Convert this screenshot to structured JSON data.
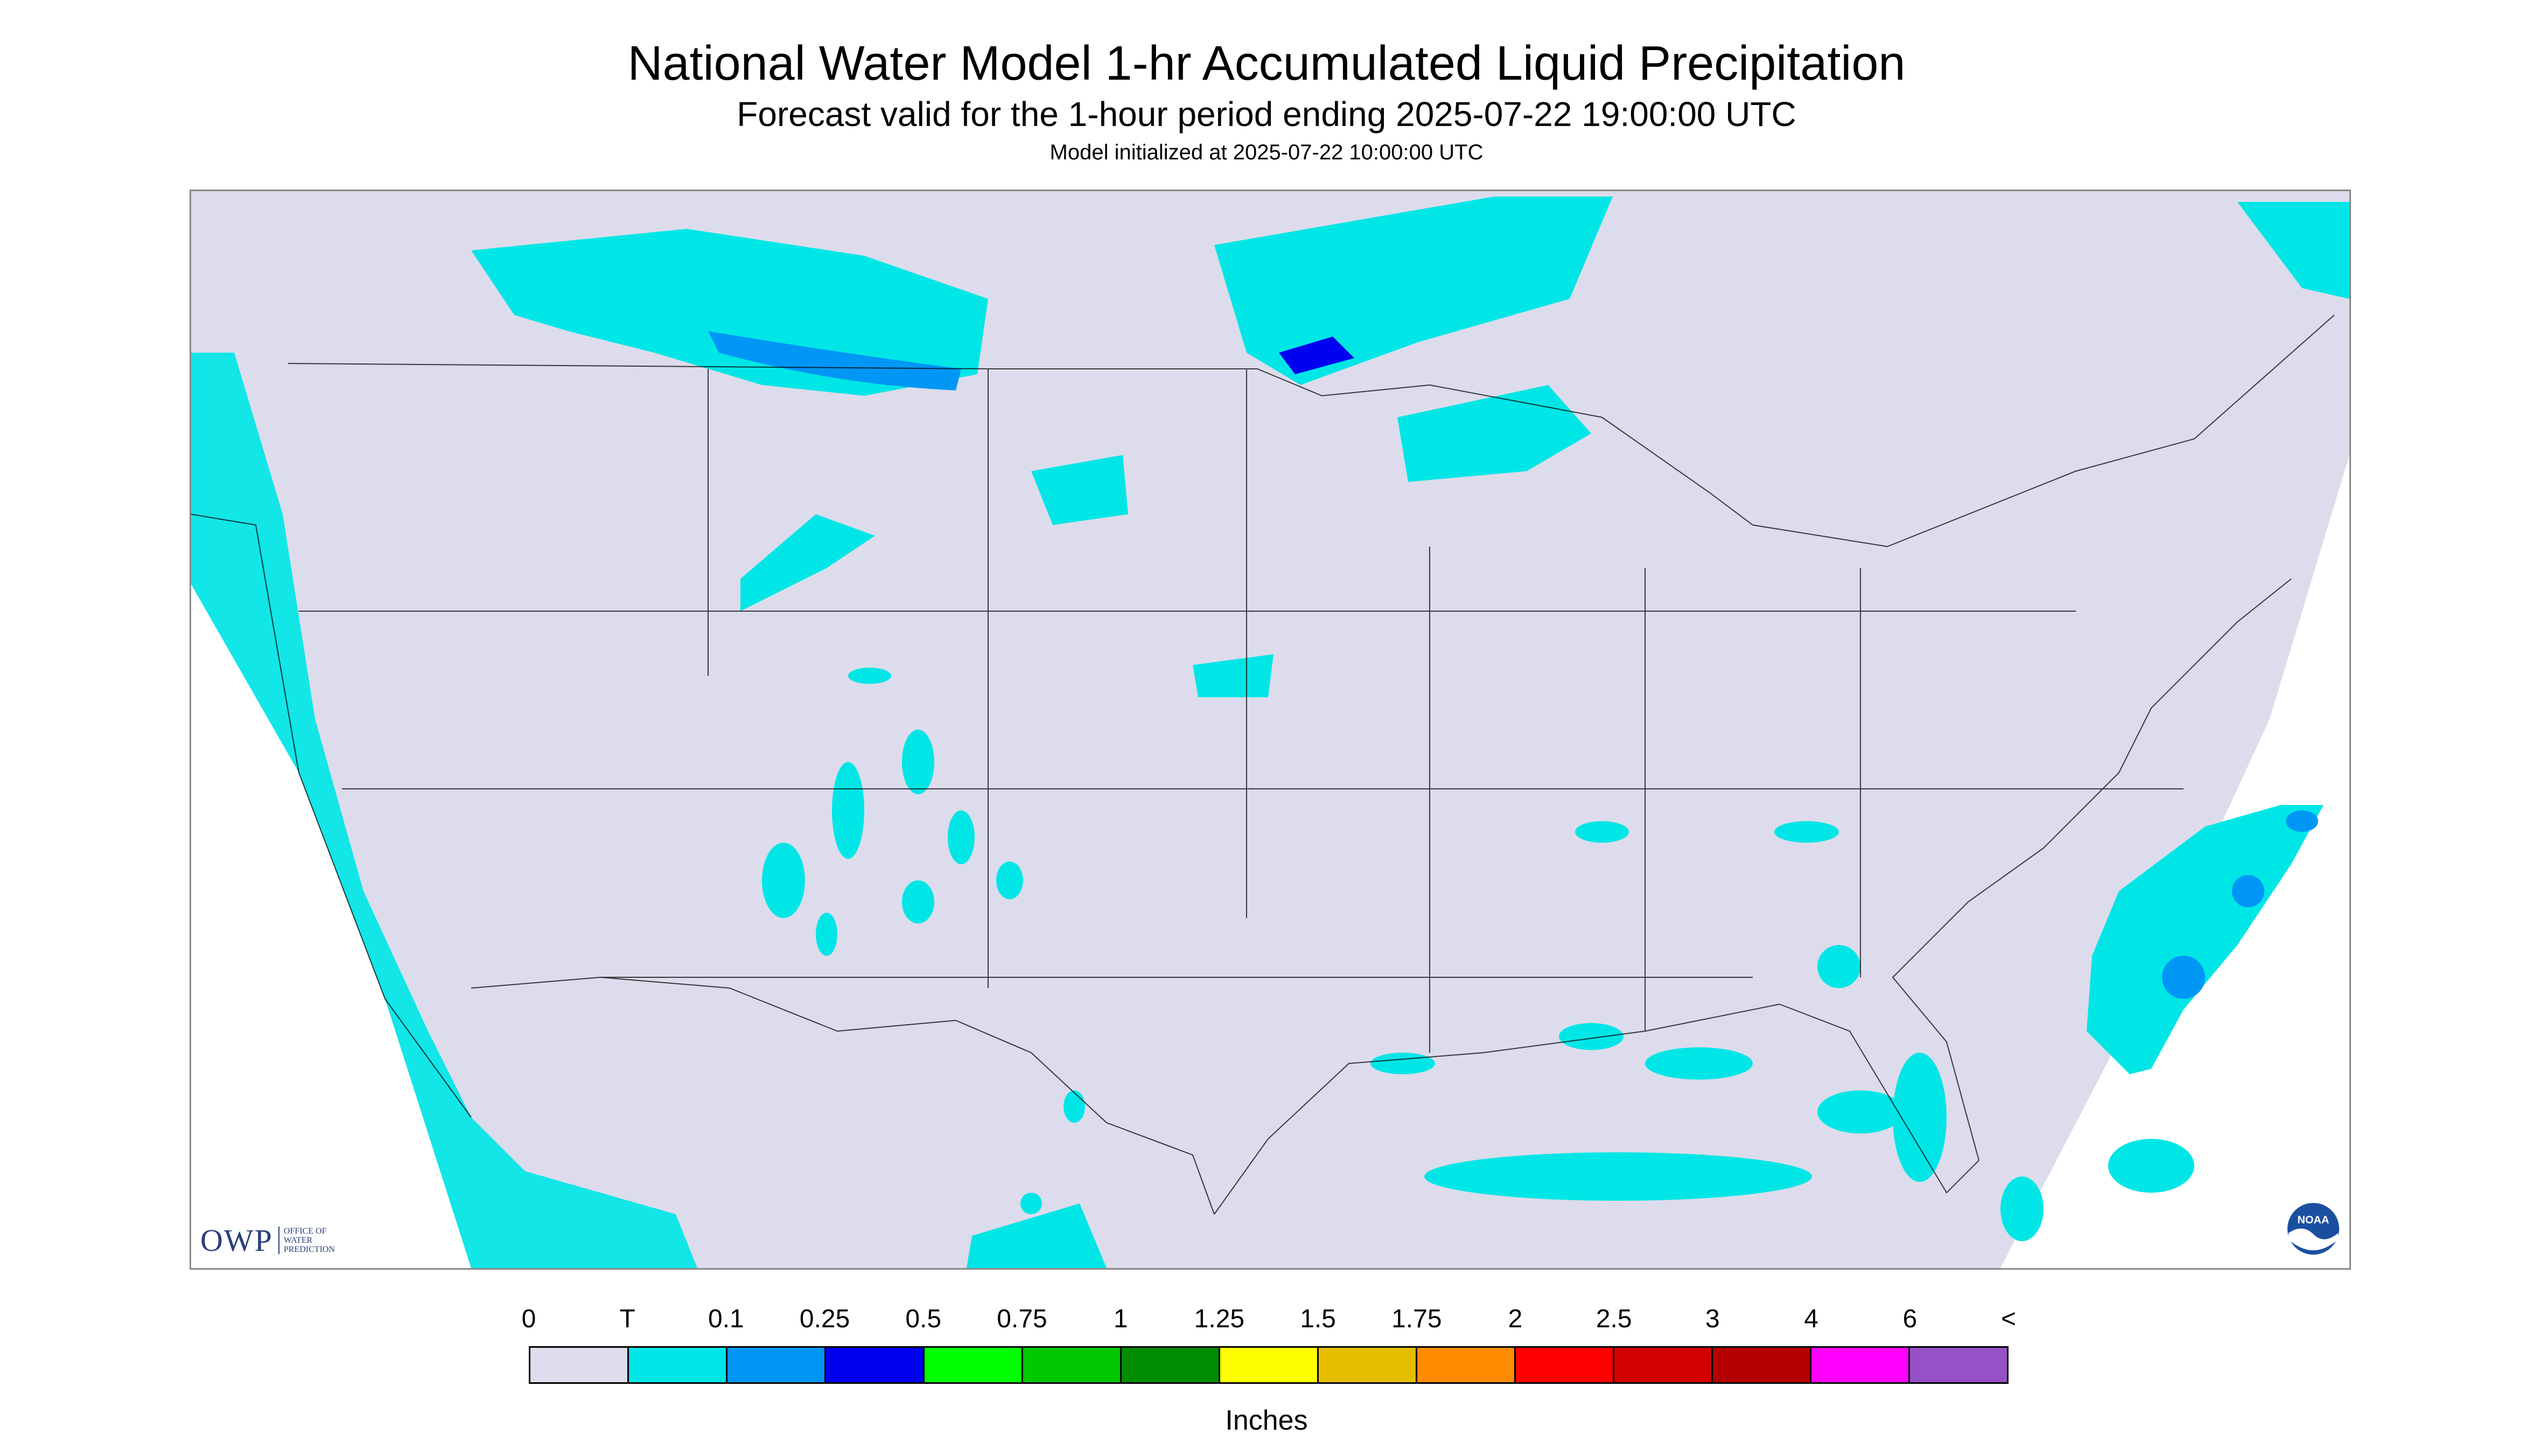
{
  "header": {
    "title": "National Water Model 1-hr Accumulated Liquid Precipitation",
    "subtitle": "Forecast valid for the 1-hour period ending 2025-07-22 19:00:00 UTC",
    "init": "Model initialized at 2025-07-22 10:00:00 UTC"
  },
  "legend": {
    "labels": [
      "0",
      "T",
      "0.1",
      "0.25",
      "0.5",
      "0.75",
      "1",
      "1.25",
      "1.5",
      "1.75",
      "2",
      "2.5",
      "3",
      "4",
      "6",
      "<"
    ],
    "colors": [
      "#dcdcec",
      "#00e6e6",
      "#0096f5",
      "#0000f0",
      "#00ff00",
      "#00c800",
      "#008c00",
      "#ffff00",
      "#e6be00",
      "#ff8c00",
      "#ff0000",
      "#d20000",
      "#b40000",
      "#ff00ff",
      "#9650c8"
    ],
    "units": "Inches"
  },
  "logos": {
    "owp_mark": "OWP",
    "owp_text": [
      "OFFICE OF",
      "WATER",
      "PREDICTION"
    ],
    "noaa_text": "NOAA"
  },
  "map": {
    "background_color": "#dcdcec",
    "out_of_domain_color": "#ffffff",
    "precip_light_color": "#00e6e6",
    "precip_medium_color": "#0096f5",
    "precip_heavy_color": "#0000f0"
  }
}
